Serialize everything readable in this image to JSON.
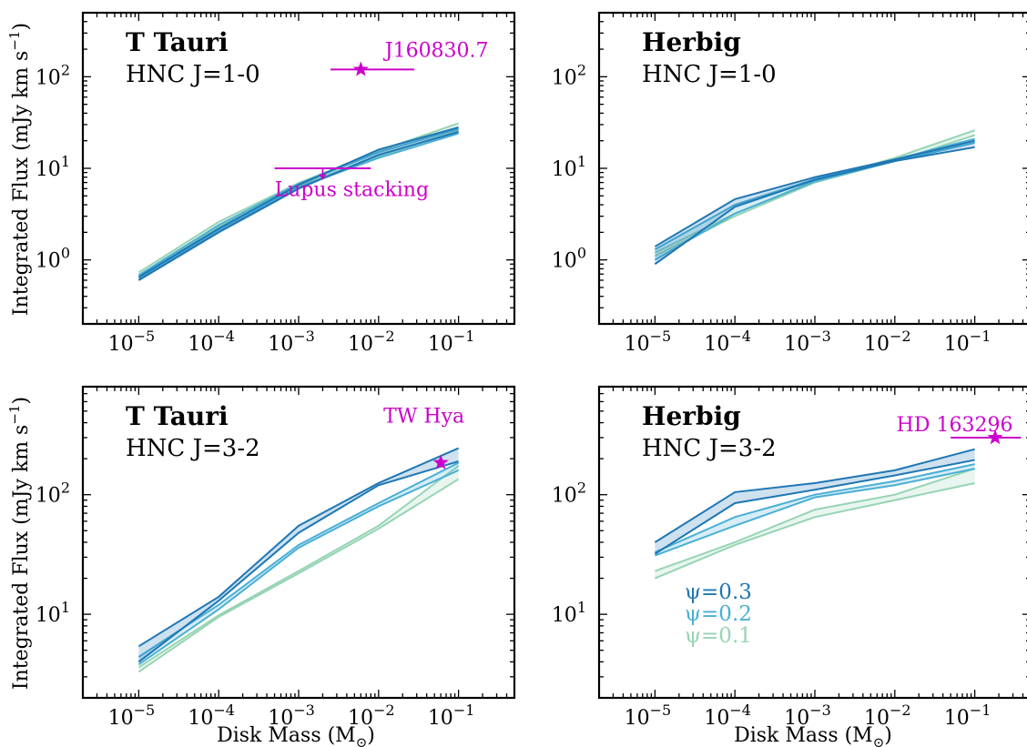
{
  "colors": {
    "psi03": "#1f77b4",
    "psi02": "#4aafd5",
    "psi01": "#96d4b4",
    "obs": "#cc00cc"
  },
  "axes": {
    "xlabel": "Disk Mass (M",
    "xlabel_sub": "⊙",
    "xlabel_close": ")",
    "ylabel": "Integrated Flux (mJy km s",
    "ylabel_sup": "−1",
    "ylabel_close": ")"
  },
  "chart_data": [
    {
      "type": "line",
      "title": "T Tauri",
      "subtitle": "HNC J=1-0",
      "xscale": "log",
      "yscale": "log",
      "xlim": [
        2e-06,
        0.5
      ],
      "ylim": [
        0.2,
        500
      ],
      "xticks": [
        {
          "base": "10",
          "exp": "−5"
        },
        {
          "base": "10",
          "exp": "−4"
        },
        {
          "base": "10",
          "exp": "−3"
        },
        {
          "base": "10",
          "exp": "−2"
        },
        {
          "base": "10",
          "exp": "−1"
        }
      ],
      "yticks": [
        {
          "base": "10",
          "exp": "0"
        },
        {
          "base": "10",
          "exp": "1"
        },
        {
          "base": "10",
          "exp": "2"
        }
      ],
      "x": [
        1e-05,
        0.0001,
        0.001,
        0.01,
        0.1
      ],
      "series": [
        {
          "name": "ψ=0.3",
          "color_key": "psi03",
          "lower": [
            0.6,
            2.0,
            6.0,
            14.0,
            25.0
          ],
          "upper": [
            0.65,
            2.2,
            6.6,
            16.0,
            28.0
          ]
        },
        {
          "name": "ψ=0.2",
          "color_key": "psi02",
          "lower": [
            0.62,
            2.1,
            6.2,
            13.0,
            24.0
          ],
          "upper": [
            0.68,
            2.4,
            6.8,
            15.0,
            27.0
          ]
        },
        {
          "name": "ψ=0.1",
          "color_key": "psi01",
          "lower": [
            0.66,
            2.3,
            6.4,
            13.5,
            26.0
          ],
          "upper": [
            0.73,
            2.6,
            6.9,
            15.5,
            31.0
          ]
        }
      ],
      "observations": [
        {
          "label": "J160830.7",
          "kind": "star",
          "x": 0.006,
          "y": 120,
          "xerr": [
            0.0025,
            0.028
          ],
          "label_pos": {
            "x": 0.012,
            "y": 165
          }
        },
        {
          "label": "Lupus stacking",
          "kind": "upper_limit",
          "x": 0.002,
          "y": 10,
          "xerr": [
            0.0005,
            0.008
          ],
          "arrow_to": 7.5,
          "label_pos": {
            "x": 0.0005,
            "y": 5.0
          }
        }
      ]
    },
    {
      "type": "line",
      "title": "Herbig",
      "subtitle": "HNC J=1-0",
      "xscale": "log",
      "yscale": "log",
      "xlim": [
        2e-06,
        0.5
      ],
      "ylim": [
        0.2,
        500
      ],
      "xticks": [
        {
          "base": "10",
          "exp": "−5"
        },
        {
          "base": "10",
          "exp": "−4"
        },
        {
          "base": "10",
          "exp": "−3"
        },
        {
          "base": "10",
          "exp": "−2"
        },
        {
          "base": "10",
          "exp": "−1"
        }
      ],
      "yticks": [
        {
          "base": "10",
          "exp": "0"
        },
        {
          "base": "10",
          "exp": "1"
        },
        {
          "base": "10",
          "exp": "2"
        }
      ],
      "x": [
        1e-05,
        0.0001,
        0.001,
        0.01,
        0.1
      ],
      "series": [
        {
          "name": "ψ=0.3",
          "color_key": "psi03",
          "lower": [
            0.9,
            3.8,
            7.5,
            12.0,
            17.0
          ],
          "upper": [
            1.4,
            4.6,
            8.0,
            12.5,
            20.0
          ]
        },
        {
          "name": "ψ=0.2",
          "color_key": "psi02",
          "lower": [
            1.0,
            3.2,
            7.2,
            12.0,
            19.0
          ],
          "upper": [
            1.3,
            4.0,
            7.6,
            12.5,
            21.0
          ]
        },
        {
          "name": "ψ=0.1",
          "color_key": "psi01",
          "lower": [
            1.1,
            3.0,
            7.0,
            12.0,
            23.0
          ],
          "upper": [
            1.2,
            3.2,
            7.3,
            13.0,
            26.0
          ]
        }
      ],
      "observations": []
    },
    {
      "type": "line",
      "title": "T Tauri",
      "subtitle": "HNC J=3-2",
      "xscale": "log",
      "yscale": "log",
      "xlim": [
        2e-06,
        0.5
      ],
      "ylim": [
        2,
        800
      ],
      "xticks": [
        {
          "base": "10",
          "exp": "−5"
        },
        {
          "base": "10",
          "exp": "−4"
        },
        {
          "base": "10",
          "exp": "−3"
        },
        {
          "base": "10",
          "exp": "−2"
        },
        {
          "base": "10",
          "exp": "−1"
        }
      ],
      "yticks": [
        {
          "base": "10",
          "exp": "1"
        },
        {
          "base": "10",
          "exp": "2"
        }
      ],
      "x": [
        1e-05,
        0.0001,
        0.001,
        0.01,
        0.1
      ],
      "series": [
        {
          "name": "ψ=0.3",
          "color_key": "psi03",
          "lower": [
            4.0,
            13.0,
            48.0,
            120.0,
            190.0
          ],
          "upper": [
            5.4,
            14.0,
            55.0,
            125.0,
            245.0
          ]
        },
        {
          "name": "ψ=0.2",
          "color_key": "psi02",
          "lower": [
            3.8,
            11.0,
            36.0,
            80.0,
            160.0
          ],
          "upper": [
            4.4,
            12.0,
            38.0,
            85.0,
            185.0
          ]
        },
        {
          "name": "ψ=0.1",
          "color_key": "psi01",
          "lower": [
            3.3,
            9.5,
            22.0,
            52.0,
            135.0
          ],
          "upper": [
            3.6,
            9.8,
            23.0,
            55.0,
            175.0
          ]
        }
      ],
      "observations": [
        {
          "label": "TW Hya",
          "kind": "star",
          "x": 0.06,
          "y": 185,
          "xerr": null,
          "label_pos": {
            "x": 0.0115,
            "y": 400
          }
        }
      ]
    },
    {
      "type": "line",
      "title": "Herbig",
      "subtitle": "HNC J=3-2",
      "xscale": "log",
      "yscale": "log",
      "xlim": [
        2e-06,
        0.5
      ],
      "ylim": [
        2,
        800
      ],
      "xticks": [
        {
          "base": "10",
          "exp": "−5"
        },
        {
          "base": "10",
          "exp": "−4"
        },
        {
          "base": "10",
          "exp": "−3"
        },
        {
          "base": "10",
          "exp": "−2"
        },
        {
          "base": "10",
          "exp": "−1"
        }
      ],
      "yticks": [
        {
          "base": "10",
          "exp": "1"
        },
        {
          "base": "10",
          "exp": "2"
        }
      ],
      "x": [
        1e-05,
        0.0001,
        0.001,
        0.01,
        0.1
      ],
      "series": [
        {
          "name": "ψ=0.3",
          "color_key": "psi03",
          "lower": [
            32.0,
            85.0,
            110.0,
            145.0,
            195.0
          ],
          "upper": [
            40.0,
            105.0,
            125.0,
            160.0,
            240.0
          ]
        },
        {
          "name": "ψ=0.2",
          "color_key": "psi02",
          "lower": [
            31.0,
            55.0,
            95.0,
            120.0,
            165.0
          ],
          "upper": [
            33.0,
            65.0,
            100.0,
            130.0,
            180.0
          ]
        },
        {
          "name": "ψ=0.1",
          "color_key": "psi01",
          "lower": [
            20.0,
            38.0,
            65.0,
            90.0,
            125.0
          ],
          "upper": [
            23.0,
            40.0,
            75.0,
            100.0,
            165.0
          ]
        }
      ],
      "observations": [
        {
          "label": "HD 163296",
          "kind": "star",
          "x": 0.18,
          "y": 300,
          "xerr": [
            0.05,
            0.38
          ],
          "label_pos": {
            "x": 0.0105,
            "y": 340
          }
        }
      ],
      "legend": {
        "placement": "lower-left",
        "entries": [
          "ψ=0.3",
          "ψ=0.2",
          "ψ=0.1"
        ]
      }
    }
  ]
}
